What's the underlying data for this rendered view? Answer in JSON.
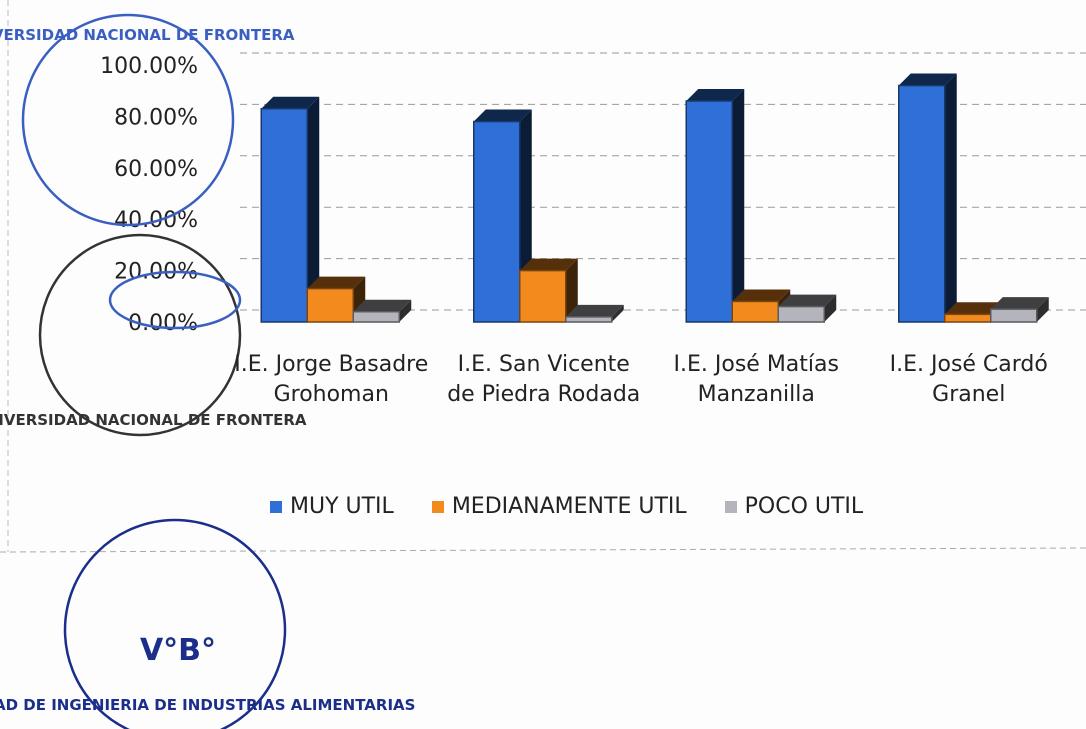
{
  "chart_data": {
    "type": "bar3d",
    "categories": [
      "I.E. Jorge Basadre Grohoman",
      "I.E. San Vicente de Piedra Rodada",
      "I.E. José Matías Manzanilla",
      "I.E. José Cardó Granel"
    ],
    "series": [
      {
        "name": "MUY UTIL",
        "color": "#2f6fd8",
        "values": [
          83,
          78,
          86,
          92
        ]
      },
      {
        "name": "MEDIANAMENTE UTIL",
        "color": "#f28a1e",
        "values": [
          13,
          20,
          8,
          3
        ]
      },
      {
        "name": "POCO UTIL",
        "color": "#b4b4bc",
        "values": [
          4,
          2,
          6,
          5
        ]
      }
    ],
    "ylim": [
      0,
      100
    ],
    "yticks": [
      {
        "value": 0,
        "label": "0.00%"
      },
      {
        "value": 20,
        "label": "20.00%"
      },
      {
        "value": 40,
        "label": "40.00%"
      },
      {
        "value": 60,
        "label": "60.00%"
      },
      {
        "value": 80,
        "label": "80.00%"
      },
      {
        "value": 100,
        "label": "100.00%"
      }
    ],
    "grid": true,
    "legend": "bottom"
  },
  "stamps": [
    "UNIVERSIDAD NACIONAL DE FRONTERA",
    "UNIVERSIDAD NACIONAL DE FRONTERA",
    "V°B°",
    "FACULTAD DE INGENIERIA DE INDUSTRIAS ALIMENTARIAS"
  ]
}
